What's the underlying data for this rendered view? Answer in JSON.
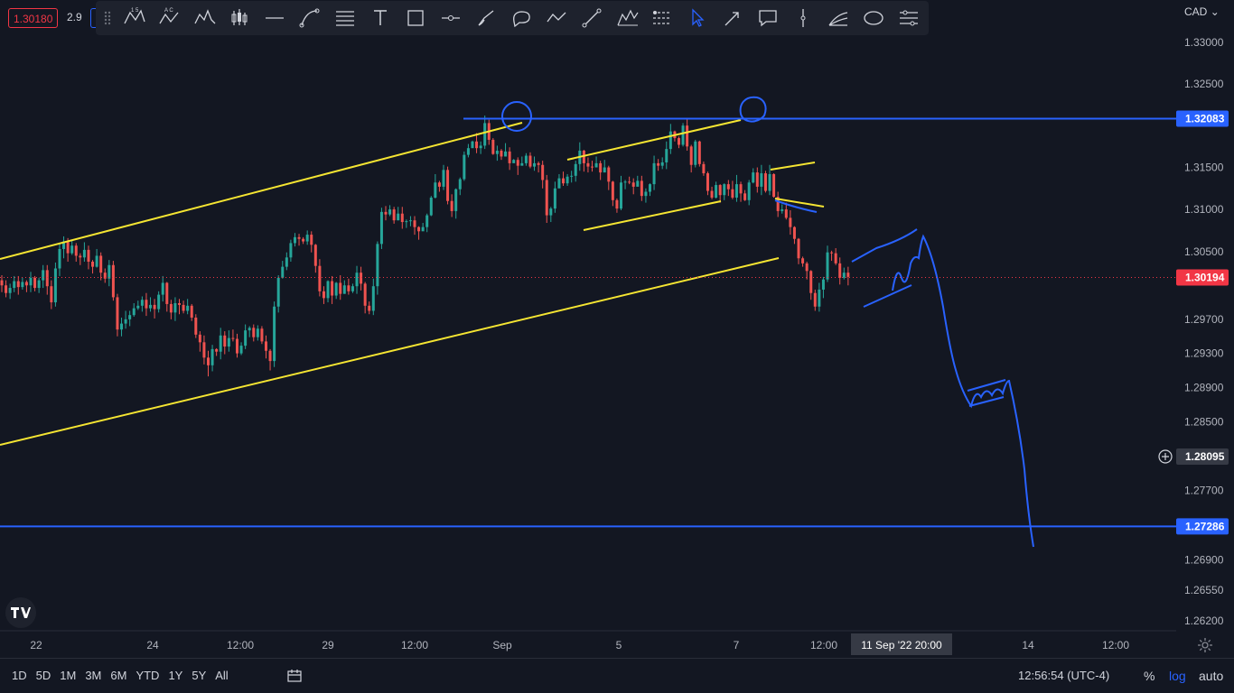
{
  "header": {
    "bid_price": "1.30180",
    "spread": "2.9",
    "currency": "CAD"
  },
  "toolbar": {
    "tools": [
      {
        "name": "xabcd-pattern-icon"
      },
      {
        "name": "abcd-pattern-icon"
      },
      {
        "name": "head-shoulders-icon"
      },
      {
        "name": "candles-icon"
      },
      {
        "name": "horizontal-line-icon"
      },
      {
        "name": "curve-icon"
      },
      {
        "name": "fib-retracement-icon"
      },
      {
        "name": "text-icon"
      },
      {
        "name": "rectangle-icon"
      },
      {
        "name": "horizontal-ray-icon"
      },
      {
        "name": "brush-icon"
      },
      {
        "name": "callout-icon"
      },
      {
        "name": "path-icon"
      },
      {
        "name": "trend-line-icon"
      },
      {
        "name": "elliott-wave-icon"
      },
      {
        "name": "long-position-icon"
      },
      {
        "name": "cursor-icon"
      },
      {
        "name": "arrow-icon"
      },
      {
        "name": "comment-icon"
      },
      {
        "name": "vertical-line-icon"
      },
      {
        "name": "fib-fan-icon"
      },
      {
        "name": "ellipse-icon"
      },
      {
        "name": "forecast-icon"
      }
    ]
  },
  "colors": {
    "background": "#131722",
    "up": "#26a69a",
    "down": "#ef5350",
    "drawing_yellow": "#f5e532",
    "drawing_blue": "#2962ff",
    "current_price": "#f23645"
  },
  "chart_data": {
    "type": "candlestick",
    "symbol_quote": "CAD",
    "price_axis": {
      "labels": [
        "1.33000",
        "1.32500",
        "1.32083",
        "1.31500",
        "1.31000",
        "1.30500",
        "1.30194",
        "1.29700",
        "1.29300",
        "1.28900",
        "1.28500",
        "1.28095",
        "1.27700",
        "1.27286",
        "1.26900",
        "1.26550",
        "1.26200"
      ],
      "range": [
        1.2615,
        1.334
      ],
      "scale": "log"
    },
    "time_axis": {
      "labels": [
        "22",
        "24",
        "12:00",
        "29",
        "12:00",
        "Sep",
        "5",
        "7",
        "12:00",
        "14",
        "12:00"
      ],
      "crosshair_label": "11 Sep '22   20:00"
    },
    "highlighted_levels": [
      {
        "label": "1.32083",
        "value": 1.32083
      },
      {
        "label": "1.30194",
        "value": 1.30194,
        "current": true
      },
      {
        "label": "1.28095",
        "value": 1.28095,
        "crosshair": true
      },
      {
        "label": "1.27286",
        "value": 1.27286
      }
    ],
    "candles": [
      [
        1.3016,
        1.301,
        1.3022,
        1.3002
      ],
      [
        1.301,
        1.3001,
        1.3016,
        1.2996
      ],
      [
        1.3001,
        1.3007,
        1.3012,
        1.2994
      ],
      [
        1.3007,
        1.3015,
        1.3021,
        1.3002
      ],
      [
        1.3015,
        1.3008,
        1.3021,
        1.2999
      ],
      [
        1.3008,
        1.3014,
        1.3019,
        1.3005
      ],
      [
        1.3014,
        1.301,
        1.3016,
        1.3002
      ],
      [
        1.301,
        1.3019,
        1.3026,
        1.3002
      ],
      [
        1.3019,
        1.3007,
        1.3021,
        1.3003
      ],
      [
        1.3007,
        1.3016,
        1.3019,
        1.3001
      ],
      [
        1.3016,
        1.3028,
        1.3034,
        1.3007
      ],
      [
        1.3028,
        1.3009,
        1.3034,
        1.2999
      ],
      [
        1.3009,
        1.299,
        1.3016,
        1.2982
      ],
      [
        1.299,
        1.303,
        1.3037,
        1.2985
      ],
      [
        1.303,
        1.3053,
        1.3059,
        1.3021
      ],
      [
        1.3053,
        1.3062,
        1.3068,
        1.3042
      ],
      [
        1.3062,
        1.3048,
        1.3066,
        1.3038
      ],
      [
        1.3048,
        1.3057,
        1.3063,
        1.3046
      ],
      [
        1.3057,
        1.3045,
        1.306,
        1.3038
      ],
      [
        1.3045,
        1.3043,
        1.3048,
        1.3034
      ],
      [
        1.3043,
        1.3052,
        1.3061,
        1.3038
      ],
      [
        1.3052,
        1.3038,
        1.3057,
        1.3029
      ],
      [
        1.3038,
        1.3032,
        1.304,
        1.3024
      ],
      [
        1.3032,
        1.3045,
        1.3053,
        1.3031
      ],
      [
        1.3045,
        1.3025,
        1.3049,
        1.3016
      ],
      [
        1.3025,
        1.3018,
        1.303,
        1.3013
      ],
      [
        1.3018,
        1.3034,
        1.304,
        1.3009
      ],
      [
        1.3034,
        1.2996,
        1.3039,
        1.2992
      ],
      [
        1.2996,
        1.2958,
        1.3,
        1.295
      ],
      [
        1.2958,
        1.2965,
        1.2972,
        1.295
      ],
      [
        1.2965,
        1.297,
        1.298,
        1.2959
      ],
      [
        1.297,
        1.2975,
        1.298,
        1.2962
      ],
      [
        1.2975,
        1.2983,
        1.2989,
        1.2973
      ],
      [
        1.2983,
        1.2986,
        1.2992,
        1.2981
      ],
      [
        1.2986,
        1.2993,
        1.2997,
        1.2979
      ],
      [
        1.2993,
        1.2983,
        1.3001,
        1.2974
      ],
      [
        1.2983,
        1.2987,
        1.2996,
        1.2979
      ],
      [
        1.2987,
        1.2982,
        1.2994,
        1.2971
      ],
      [
        1.2982,
        1.2999,
        1.3003,
        1.2978
      ],
      [
        1.2999,
        1.3013,
        1.3021,
        1.2991
      ],
      [
        1.3013,
        1.2988,
        1.3014,
        1.2979
      ],
      [
        1.2988,
        1.2978,
        1.2993,
        1.297
      ],
      [
        1.2978,
        1.2989,
        1.2996,
        1.2968
      ],
      [
        1.2989,
        1.2987,
        1.2994,
        1.2976
      ],
      [
        1.2987,
        1.298,
        1.2992,
        1.2977
      ],
      [
        1.298,
        1.2986,
        1.2994,
        1.2976
      ],
      [
        1.2986,
        1.2972,
        1.2988,
        1.2968
      ],
      [
        1.2972,
        1.2952,
        1.2976,
        1.2948
      ],
      [
        1.2952,
        1.2943,
        1.2956,
        1.2932
      ],
      [
        1.2943,
        1.2925,
        1.2951,
        1.2917
      ],
      [
        1.2925,
        1.2916,
        1.2933,
        1.2903
      ],
      [
        1.2916,
        1.2935,
        1.294,
        1.2909
      ],
      [
        1.2935,
        1.2932,
        1.2936,
        1.2927
      ],
      [
        1.2932,
        1.2951,
        1.296,
        1.2923
      ],
      [
        1.2951,
        1.2938,
        1.2956,
        1.2929
      ],
      [
        1.2938,
        1.2948,
        1.2957,
        1.2932
      ],
      [
        1.2948,
        1.2947,
        1.2958,
        1.2944
      ],
      [
        1.2947,
        1.293,
        1.2953,
        1.2925
      ],
      [
        1.293,
        1.2939,
        1.2943,
        1.2928
      ],
      [
        1.2939,
        1.2957,
        1.2964,
        1.2935
      ],
      [
        1.2957,
        1.296,
        1.2962,
        1.2949
      ],
      [
        1.296,
        1.2949,
        1.2964,
        1.2944
      ],
      [
        1.2949,
        1.2959,
        1.2963,
        1.2945
      ],
      [
        1.2959,
        1.2944,
        1.2962,
        1.2941
      ],
      [
        1.2944,
        1.2933,
        1.2951,
        1.2924
      ],
      [
        1.2933,
        1.2921,
        1.2935,
        1.291
      ],
      [
        1.2921,
        1.2985,
        1.2991,
        1.2914
      ],
      [
        1.2985,
        1.3019,
        1.3022,
        1.2978
      ],
      [
        1.3019,
        1.3032,
        1.3039,
        1.3018
      ],
      [
        1.3032,
        1.3043,
        1.3049,
        1.3028
      ],
      [
        1.3043,
        1.306,
        1.3064,
        1.3038
      ],
      [
        1.306,
        1.3067,
        1.3072,
        1.3056
      ],
      [
        1.3067,
        1.3065,
        1.3071,
        1.3057
      ],
      [
        1.3065,
        1.3062,
        1.3067,
        1.3059
      ],
      [
        1.3062,
        1.307,
        1.3075,
        1.3058
      ],
      [
        1.307,
        1.3058,
        1.3074,
        1.3049
      ],
      [
        1.3058,
        1.3033,
        1.3059,
        1.3025
      ],
      [
        1.3033,
        1.3003,
        1.3041,
        1.2997
      ],
      [
        1.3003,
        1.2995,
        1.3009,
        1.2988
      ],
      [
        1.2995,
        1.3015,
        1.3016,
        1.299
      ],
      [
        1.3015,
        1.2998,
        1.3021,
        1.2988
      ],
      [
        1.2998,
        1.3013,
        1.3014,
        1.2994
      ],
      [
        1.3013,
        1.3,
        1.3022,
        1.2993
      ],
      [
        1.3,
        1.301,
        1.3016,
        1.3
      ],
      [
        1.301,
        1.3003,
        1.3018,
        1.2999
      ],
      [
        1.3003,
        1.3009,
        1.3012,
        1.3001
      ],
      [
        1.3009,
        1.3025,
        1.3033,
        1.3
      ],
      [
        1.3025,
        1.3012,
        1.3032,
        1.3004
      ],
      [
        1.3012,
        1.2986,
        1.3014,
        1.2977
      ],
      [
        1.2986,
        1.298,
        1.2991,
        1.2976
      ],
      [
        1.298,
        1.3009,
        1.3018,
        1.2975
      ],
      [
        1.3009,
        1.3059,
        1.3062,
        1.2999
      ],
      [
        1.3059,
        1.3097,
        1.3102,
        1.3053
      ],
      [
        1.3097,
        1.3094,
        1.3104,
        1.3087
      ],
      [
        1.3094,
        1.31,
        1.3105,
        1.3092
      ],
      [
        1.31,
        1.3087,
        1.3103,
        1.3083
      ],
      [
        1.3087,
        1.3095,
        1.3103,
        1.3087
      ],
      [
        1.3095,
        1.3085,
        1.3103,
        1.3077
      ],
      [
        1.3085,
        1.3086,
        1.3088,
        1.3078
      ],
      [
        1.3086,
        1.3087,
        1.3092,
        1.308
      ],
      [
        1.3087,
        1.3079,
        1.3092,
        1.307
      ],
      [
        1.3079,
        1.3074,
        1.308,
        1.3064
      ],
      [
        1.3074,
        1.3079,
        1.3084,
        1.3075
      ],
      [
        1.3079,
        1.3093,
        1.3095,
        1.3073
      ],
      [
        1.3093,
        1.3114,
        1.3116,
        1.3092
      ],
      [
        1.3114,
        1.3132,
        1.3142,
        1.3113
      ],
      [
        1.3132,
        1.3127,
        1.3134,
        1.3121
      ],
      [
        1.3127,
        1.3147,
        1.3153,
        1.3123
      ],
      [
        1.3147,
        1.311,
        1.3151,
        1.3106
      ],
      [
        1.311,
        1.3098,
        1.3118,
        1.3091
      ],
      [
        1.3098,
        1.3124,
        1.3125,
        1.3089
      ],
      [
        1.3124,
        1.3136,
        1.3138,
        1.3117
      ],
      [
        1.3136,
        1.3165,
        1.3169,
        1.3134
      ],
      [
        1.3165,
        1.3173,
        1.3178,
        1.3162
      ],
      [
        1.3173,
        1.3181,
        1.3182,
        1.3175
      ],
      [
        1.3181,
        1.3173,
        1.3191,
        1.3167
      ],
      [
        1.3173,
        1.3176,
        1.3181,
        1.3166
      ],
      [
        1.3176,
        1.3203,
        1.3212,
        1.3172
      ],
      [
        1.3203,
        1.3183,
        1.3207,
        1.3177
      ],
      [
        1.3183,
        1.3166,
        1.3185,
        1.3165
      ],
      [
        1.3166,
        1.317,
        1.3176,
        1.3158
      ],
      [
        1.317,
        1.3163,
        1.3172,
        1.3159
      ],
      [
        1.3163,
        1.3169,
        1.3179,
        1.3163
      ],
      [
        1.3169,
        1.3155,
        1.3174,
        1.3147
      ],
      [
        1.3155,
        1.3159,
        1.316,
        1.3157
      ],
      [
        1.3159,
        1.3152,
        1.3162,
        1.3141
      ],
      [
        1.3152,
        1.3155,
        1.3163,
        1.3153
      ],
      [
        1.3155,
        1.3164,
        1.3167,
        1.3152
      ],
      [
        1.3164,
        1.3151,
        1.3168,
        1.3149
      ],
      [
        1.3151,
        1.3155,
        1.3163,
        1.3146
      ],
      [
        1.3155,
        1.3153,
        1.3157,
        1.3144
      ],
      [
        1.3153,
        1.3135,
        1.3158,
        1.3125
      ],
      [
        1.3135,
        1.3093,
        1.3141,
        1.3084
      ],
      [
        1.3093,
        1.3101,
        1.3103,
        1.3085
      ],
      [
        1.3101,
        1.3125,
        1.3133,
        1.3096
      ],
      [
        1.3125,
        1.3137,
        1.3142,
        1.3128
      ],
      [
        1.3137,
        1.3131,
        1.3145,
        1.3128
      ],
      [
        1.3131,
        1.3139,
        1.3142,
        1.3128
      ],
      [
        1.3139,
        1.314,
        1.3146,
        1.3132
      ],
      [
        1.314,
        1.3154,
        1.3158,
        1.3133
      ],
      [
        1.3154,
        1.317,
        1.318,
        1.3146
      ],
      [
        1.317,
        1.3155,
        1.3171,
        1.3145
      ],
      [
        1.3155,
        1.3151,
        1.3162,
        1.3144
      ],
      [
        1.3151,
        1.315,
        1.3158,
        1.3145
      ],
      [
        1.315,
        1.3155,
        1.3163,
        1.3154
      ],
      [
        1.3155,
        1.3144,
        1.3158,
        1.3135
      ],
      [
        1.3144,
        1.315,
        1.3159,
        1.3144
      ],
      [
        1.315,
        1.3133,
        1.3152,
        1.3123
      ],
      [
        1.3133,
        1.3111,
        1.3134,
        1.3104
      ],
      [
        1.3111,
        1.3101,
        1.3113,
        1.3096
      ],
      [
        1.3101,
        1.3132,
        1.314,
        1.3099
      ],
      [
        1.3132,
        1.3133,
        1.3135,
        1.3124
      ],
      [
        1.3133,
        1.3132,
        1.3139,
        1.313
      ],
      [
        1.3132,
        1.3127,
        1.3137,
        1.3118
      ],
      [
        1.3127,
        1.3134,
        1.314,
        1.313
      ],
      [
        1.3134,
        1.3116,
        1.314,
        1.311
      ],
      [
        1.3116,
        1.3121,
        1.3125,
        1.3108
      ],
      [
        1.3121,
        1.313,
        1.3131,
        1.3116
      ],
      [
        1.313,
        1.3155,
        1.3164,
        1.3123
      ],
      [
        1.3155,
        1.3152,
        1.316,
        1.3146
      ],
      [
        1.3152,
        1.3156,
        1.3162,
        1.3148
      ],
      [
        1.3156,
        1.3172,
        1.3181,
        1.3148
      ],
      [
        1.3172,
        1.3193,
        1.3202,
        1.3166
      ],
      [
        1.3193,
        1.3185,
        1.3194,
        1.3181
      ],
      [
        1.3185,
        1.3177,
        1.3187,
        1.3173
      ],
      [
        1.3177,
        1.32,
        1.3203,
        1.3175
      ],
      [
        1.32,
        1.3175,
        1.3209,
        1.317
      ],
      [
        1.3175,
        1.3153,
        1.3177,
        1.3144
      ],
      [
        1.3153,
        1.3181,
        1.3183,
        1.315
      ],
      [
        1.3181,
        1.3154,
        1.3182,
        1.3151
      ],
      [
        1.3154,
        1.3143,
        1.3157,
        1.314
      ],
      [
        1.3143,
        1.3122,
        1.3145,
        1.3117
      ],
      [
        1.3122,
        1.3114,
        1.3127,
        1.3112
      ],
      [
        1.3114,
        1.3129,
        1.3133,
        1.3113
      ],
      [
        1.3129,
        1.3117,
        1.313,
        1.3108
      ],
      [
        1.3117,
        1.313,
        1.3131,
        1.3111
      ],
      [
        1.313,
        1.3124,
        1.3135,
        1.3116
      ],
      [
        1.3124,
        1.3114,
        1.3134,
        1.3112
      ],
      [
        1.3114,
        1.313,
        1.3141,
        1.3109
      ],
      [
        1.313,
        1.3119,
        1.3133,
        1.3109
      ],
      [
        1.3119,
        1.3111,
        1.3123,
        1.311
      ],
      [
        1.3111,
        1.3132,
        1.3135,
        1.3105
      ],
      [
        1.3132,
        1.3144,
        1.3149,
        1.3131
      ],
      [
        1.3144,
        1.3127,
        1.315,
        1.312
      ],
      [
        1.3127,
        1.3143,
        1.3153,
        1.3117
      ],
      [
        1.3143,
        1.3122,
        1.3146,
        1.312
      ],
      [
        1.3122,
        1.3142,
        1.3153,
        1.3117
      ],
      [
        1.3142,
        1.3115,
        1.3143,
        1.3114
      ],
      [
        1.3115,
        1.3098,
        1.3121,
        1.3091
      ],
      [
        1.3098,
        1.31,
        1.3106,
        1.3095
      ],
      [
        1.31,
        1.309,
        1.3108,
        1.3088
      ],
      [
        1.309,
        1.3079,
        1.3099,
        1.307
      ],
      [
        1.3079,
        1.3065,
        1.308,
        1.3059
      ],
      [
        1.3065,
        1.3042,
        1.3066,
        1.3035
      ],
      [
        1.3042,
        1.3036,
        1.3044,
        1.3032
      ],
      [
        1.3036,
        1.3027,
        1.3038,
        1.3017
      ],
      [
        1.3027,
        1.3001,
        1.3028,
        1.2993
      ],
      [
        1.3001,
        1.2985,
        1.3005,
        1.298
      ],
      [
        1.2985,
        1.3005,
        1.3013,
        1.2979
      ],
      [
        1.3005,
        1.3017,
        1.302,
        1.2995
      ],
      [
        1.3017,
        1.3049,
        1.3057,
        1.3014
      ],
      [
        1.3049,
        1.3048,
        1.3051,
        1.3039
      ],
      [
        1.3048,
        1.3036,
        1.3054,
        1.3034
      ],
      [
        1.3036,
        1.3019,
        1.3043,
        1.3011
      ],
      [
        1.3019,
        1.3025,
        1.3031,
        1.3017
      ],
      [
        1.3025,
        1.302,
        1.3032,
        1.301
      ]
    ],
    "annotations": [
      {
        "type": "trend-channel",
        "color": "yellow",
        "desc": "long ascending channel"
      },
      {
        "type": "trend-channel",
        "color": "yellow",
        "desc": "inner ascending channel"
      },
      {
        "type": "horizontal-line",
        "color": "blue",
        "value": 1.32083
      },
      {
        "type": "horizontal-line",
        "color": "blue",
        "value": 1.27286
      },
      {
        "type": "forecast-path",
        "color": "blue",
        "desc": "projected decline to 1.27"
      }
    ]
  },
  "bottom_bar": {
    "ranges": [
      "1D",
      "5D",
      "1M",
      "3M",
      "6M",
      "YTD",
      "1Y",
      "5Y",
      "All"
    ],
    "clock": "12:56:54 (UTC-4)",
    "percent": "%",
    "log": "log",
    "auto": "auto"
  }
}
